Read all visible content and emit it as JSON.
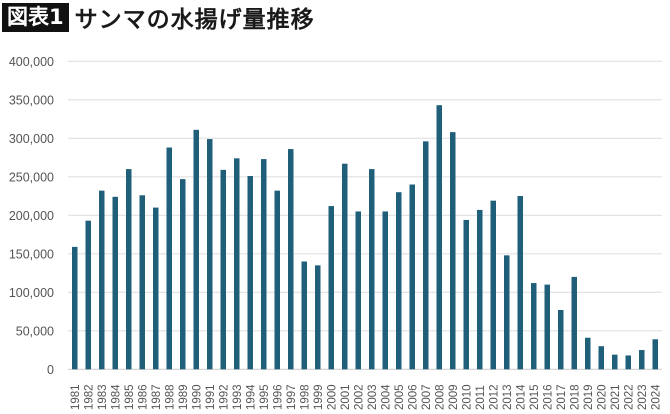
{
  "header": {
    "figure_label": "図表1",
    "title": "サンマの水揚げ量推移"
  },
  "chart_data": {
    "type": "bar",
    "title": "サンマの水揚げ量推移",
    "xlabel": "",
    "ylabel": "",
    "ylim": [
      0,
      400000
    ],
    "yticks": [
      "0",
      "50,000",
      "100,000",
      "150,000",
      "200,000",
      "250,000",
      "300,000",
      "350,000",
      "400,000"
    ],
    "grid": true,
    "bar_color": "#1f5f7a",
    "categories": [
      "1981",
      "1982",
      "1983",
      "1984",
      "1985",
      "1986",
      "1987",
      "1988",
      "1989",
      "1990",
      "1991",
      "1992",
      "1993",
      "1994",
      "1995",
      "1996",
      "1997",
      "1998",
      "1999",
      "2000",
      "2001",
      "2002",
      "2003",
      "2004",
      "2005",
      "2006",
      "2007",
      "2008",
      "2009",
      "2010",
      "2011",
      "2012",
      "2013",
      "2014",
      "2015",
      "2016",
      "2017",
      "2018",
      "2019",
      "2020",
      "2021",
      "2022",
      "2023",
      "2024"
    ],
    "values": [
      159000,
      193000,
      232000,
      224000,
      260000,
      226000,
      210000,
      288000,
      247000,
      311000,
      299000,
      259000,
      274000,
      251000,
      273000,
      232000,
      286000,
      140000,
      135000,
      212000,
      267000,
      205000,
      260000,
      205000,
      230000,
      240000,
      296000,
      343000,
      308000,
      194000,
      207000,
      219000,
      148000,
      225000,
      112000,
      110000,
      77000,
      120000,
      41000,
      30000,
      19000,
      18000,
      25000,
      39000
    ]
  }
}
